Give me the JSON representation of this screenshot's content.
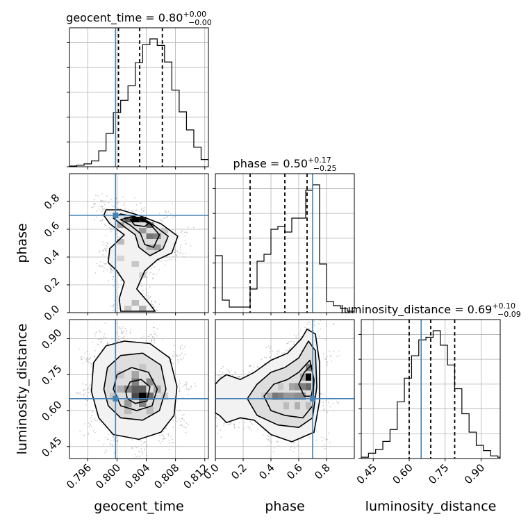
{
  "chart_data": {
    "type": "corner",
    "parameters": [
      "geocent_time",
      "phase",
      "luminosity_distance"
    ],
    "truth": {
      "geocent_time": 0.7998,
      "phase": 0.7,
      "luminosity_distance": 0.65
    },
    "titles": {
      "geocent_time": {
        "label": "geocent_time = 0.80",
        "plus": "+0.00",
        "minus": "−0.00"
      },
      "phase": {
        "label": "phase = 0.50",
        "plus": "+0.17",
        "minus": "−0.25"
      },
      "luminosity_distance": {
        "label": "luminosity_distance = 0.69",
        "plus": "+0.10",
        "minus": "−0.09"
      }
    },
    "axes": {
      "geocent_time": {
        "label": "geocent_time",
        "range": [
          0.7935,
          0.8125
        ],
        "ticks": [
          0.796,
          0.8,
          0.804,
          0.808,
          0.812
        ],
        "tick_labels": [
          "0.796",
          "0.800",
          "0.804",
          "0.808",
          "0.812"
        ]
      },
      "phase": {
        "label": "phase",
        "range": [
          0.0,
          1.0
        ],
        "ticks": [
          0.0,
          0.2,
          0.4,
          0.6,
          0.8
        ],
        "tick_labels": [
          "0.0",
          "0.2",
          "0.4",
          "0.6",
          "0.8"
        ]
      },
      "luminosity_distance": {
        "label": "luminosity_distance",
        "range": [
          0.4,
          0.98
        ],
        "ticks": [
          0.45,
          0.6,
          0.75,
          0.9
        ],
        "tick_labels": [
          "0.45",
          "0.60",
          "0.75",
          "0.90"
        ]
      }
    },
    "histograms": {
      "geocent_time": {
        "edges": [
          0.7935,
          0.7945,
          0.7955,
          0.7965,
          0.7975,
          0.7985,
          0.7995,
          0.8005,
          0.8015,
          0.8025,
          0.8035,
          0.8045,
          0.8055,
          0.8065,
          0.8075,
          0.8085,
          0.8095,
          0.8105,
          0.8115,
          0.8125
        ],
        "counts": [
          1,
          2,
          4,
          8,
          22,
          46,
          75,
          92,
          112,
          144,
          169,
          177,
          168,
          145,
          106,
          76,
          51,
          27,
          10
        ],
        "quantiles": [
          0.8002,
          0.8031,
          0.8062
        ]
      },
      "phase": {
        "edges": [
          0.0,
          0.05,
          0.1,
          0.15,
          0.2,
          0.25,
          0.3,
          0.35,
          0.4,
          0.45,
          0.5,
          0.55,
          0.6,
          0.65,
          0.7,
          0.75,
          0.8,
          0.85,
          0.9,
          0.95,
          1.0
        ],
        "counts": [
          0.41,
          0.09,
          0.04,
          0.04,
          0.04,
          0.17,
          0.37,
          0.42,
          0.6,
          0.62,
          0.58,
          0.68,
          0.68,
          0.88,
          0.92,
          0.35,
          0.08,
          0.05,
          0.03,
          0.01
        ],
        "quantiles": [
          0.25,
          0.5,
          0.66
        ]
      },
      "luminosity_distance": {
        "edges": [
          0.4,
          0.43,
          0.46,
          0.49,
          0.52,
          0.55,
          0.58,
          0.61,
          0.64,
          0.67,
          0.7,
          0.73,
          0.76,
          0.79,
          0.82,
          0.85,
          0.88,
          0.91,
          0.94,
          0.97,
          0.98
        ],
        "counts": [
          0.01,
          0.04,
          0.07,
          0.13,
          0.22,
          0.43,
          0.61,
          0.78,
          0.9,
          0.92,
          0.97,
          0.86,
          0.71,
          0.53,
          0.34,
          0.2,
          0.1,
          0.06,
          0.02,
          0.01
        ],
        "quantiles": [
          0.6,
          0.69,
          0.79
        ]
      }
    },
    "pairs": [
      {
        "x": "geocent_time",
        "y": "phase",
        "levels": [
          [
            [
              0.7982,
              0.7
            ],
            [
              0.7985,
              0.74
            ],
            [
              0.8005,
              0.74
            ],
            [
              0.803,
              0.7
            ],
            [
              0.806,
              0.64
            ],
            [
              0.8083,
              0.55
            ],
            [
              0.8075,
              0.43
            ],
            [
              0.8055,
              0.38
            ],
            [
              0.8038,
              0.3
            ],
            [
              0.8027,
              0.17
            ],
            [
              0.8045,
              0.06
            ],
            [
              0.8052,
              0.01
            ],
            [
              0.8005,
              0.01
            ],
            [
              0.8003,
              0.1
            ],
            [
              0.801,
              0.22
            ],
            [
              0.8,
              0.3
            ],
            [
              0.7988,
              0.36
            ],
            [
              0.799,
              0.46
            ],
            [
              0.801,
              0.56
            ],
            [
              0.799,
              0.64
            ]
          ],
          [
            [
              0.7995,
              0.68
            ],
            [
              0.8005,
              0.71
            ],
            [
              0.8025,
              0.69
            ],
            [
              0.805,
              0.63
            ],
            [
              0.807,
              0.55
            ],
            [
              0.8063,
              0.46
            ],
            [
              0.8045,
              0.41
            ],
            [
              0.803,
              0.47
            ],
            [
              0.8025,
              0.56
            ],
            [
              0.8012,
              0.61
            ]
          ],
          [
            [
              0.8005,
              0.67
            ],
            [
              0.8022,
              0.69
            ],
            [
              0.8045,
              0.64
            ],
            [
              0.8058,
              0.56
            ],
            [
              0.805,
              0.47
            ],
            [
              0.8038,
              0.49
            ],
            [
              0.8032,
              0.57
            ],
            [
              0.8018,
              0.63
            ]
          ],
          [
            [
              0.8018,
              0.67
            ],
            [
              0.8033,
              0.68
            ],
            [
              0.8045,
              0.65
            ],
            [
              0.8038,
              0.62
            ],
            [
              0.8024,
              0.63
            ]
          ]
        ],
        "cells": [
          {
            "x": 0.8025,
            "y": 0.67,
            "v": 1.0
          },
          {
            "x": 0.8035,
            "y": 0.67,
            "v": 0.85
          },
          {
            "x": 0.8015,
            "y": 0.67,
            "v": 0.6
          },
          {
            "x": 0.8045,
            "y": 0.63,
            "v": 0.55
          },
          {
            "x": 0.8045,
            "y": 0.55,
            "v": 0.5
          },
          {
            "x": 0.8055,
            "y": 0.55,
            "v": 0.45
          },
          {
            "x": 0.8055,
            "y": 0.47,
            "v": 0.35
          },
          {
            "x": 0.8005,
            "y": 0.63,
            "v": 0.3
          },
          {
            "x": 0.8035,
            "y": 0.59,
            "v": 0.35
          },
          {
            "x": 0.8045,
            "y": 0.47,
            "v": 0.25
          },
          {
            "x": 0.8005,
            "y": 0.51,
            "v": 0.2
          },
          {
            "x": 0.8025,
            "y": 0.35,
            "v": 0.15
          },
          {
            "x": 0.8035,
            "y": 0.27,
            "v": 0.1
          },
          {
            "x": 0.8025,
            "y": 0.07,
            "v": 0.2
          },
          {
            "x": 0.8035,
            "y": 0.03,
            "v": 0.25
          },
          {
            "x": 0.8015,
            "y": 0.03,
            "v": 0.15
          },
          {
            "x": 0.8005,
            "y": 0.39,
            "v": 0.1
          },
          {
            "x": 0.8065,
            "y": 0.59,
            "v": 0.15
          }
        ]
      },
      {
        "x": "geocent_time",
        "y": "luminosity_distance",
        "levels": [
          [
            [
              0.7965,
              0.68
            ],
            [
              0.7968,
              0.8
            ],
            [
              0.7985,
              0.87
            ],
            [
              0.801,
              0.89
            ],
            [
              0.8045,
              0.88
            ],
            [
              0.8072,
              0.82
            ],
            [
              0.8082,
              0.7
            ],
            [
              0.8078,
              0.58
            ],
            [
              0.806,
              0.51
            ],
            [
              0.803,
              0.48
            ],
            [
              0.7995,
              0.5
            ],
            [
              0.7975,
              0.57
            ]
          ],
          [
            [
              0.7982,
              0.69
            ],
            [
              0.7987,
              0.78
            ],
            [
              0.8005,
              0.83
            ],
            [
              0.8035,
              0.84
            ],
            [
              0.806,
              0.79
            ],
            [
              0.8067,
              0.69
            ],
            [
              0.8058,
              0.6
            ],
            [
              0.8035,
              0.56
            ],
            [
              0.8005,
              0.57
            ],
            [
              0.7988,
              0.62
            ]
          ],
          [
            [
              0.7995,
              0.69
            ],
            [
              0.8,
              0.75
            ],
            [
              0.802,
              0.78
            ],
            [
              0.8043,
              0.76
            ],
            [
              0.8055,
              0.69
            ],
            [
              0.8048,
              0.62
            ],
            [
              0.8027,
              0.6
            ],
            [
              0.8005,
              0.62
            ]
          ],
          [
            [
              0.8012,
              0.68
            ],
            [
              0.8018,
              0.72
            ],
            [
              0.8033,
              0.73
            ],
            [
              0.8045,
              0.7
            ],
            [
              0.8041,
              0.64
            ],
            [
              0.8025,
              0.63
            ],
            [
              0.8014,
              0.65
            ]
          ]
        ],
        "cells": [
          {
            "x": 0.8035,
            "y": 0.66,
            "v": 1.0
          },
          {
            "x": 0.8025,
            "y": 0.66,
            "v": 0.7
          },
          {
            "x": 0.8045,
            "y": 0.66,
            "v": 0.55
          },
          {
            "x": 0.8025,
            "y": 0.69,
            "v": 0.6
          },
          {
            "x": 0.8035,
            "y": 0.69,
            "v": 0.6
          },
          {
            "x": 0.8015,
            "y": 0.69,
            "v": 0.45
          },
          {
            "x": 0.8045,
            "y": 0.72,
            "v": 0.4
          },
          {
            "x": 0.8025,
            "y": 0.72,
            "v": 0.45
          },
          {
            "x": 0.8015,
            "y": 0.63,
            "v": 0.35
          },
          {
            "x": 0.8035,
            "y": 0.63,
            "v": 0.45
          },
          {
            "x": 0.8005,
            "y": 0.69,
            "v": 0.25
          },
          {
            "x": 0.8055,
            "y": 0.69,
            "v": 0.3
          },
          {
            "x": 0.8025,
            "y": 0.75,
            "v": 0.3
          },
          {
            "x": 0.8005,
            "y": 0.75,
            "v": 0.15
          },
          {
            "x": 0.8045,
            "y": 0.6,
            "v": 0.2
          },
          {
            "x": 0.8015,
            "y": 0.6,
            "v": 0.2
          },
          {
            "x": 0.8035,
            "y": 0.78,
            "v": 0.15
          },
          {
            "x": 0.7995,
            "y": 0.66,
            "v": 0.15
          },
          {
            "x": 0.8065,
            "y": 0.66,
            "v": 0.12
          }
        ]
      },
      {
        "x": "phase",
        "y": "luminosity_distance",
        "levels": [
          [
            [
              0.0,
              0.71
            ],
            [
              0.03,
              0.73
            ],
            [
              0.08,
              0.75
            ],
            [
              0.18,
              0.73
            ],
            [
              0.28,
              0.76
            ],
            [
              0.4,
              0.81
            ],
            [
              0.52,
              0.84
            ],
            [
              0.62,
              0.9
            ],
            [
              0.66,
              0.94
            ],
            [
              0.72,
              0.92
            ],
            [
              0.75,
              0.8
            ],
            [
              0.75,
              0.64
            ],
            [
              0.71,
              0.51
            ],
            [
              0.55,
              0.47
            ],
            [
              0.4,
              0.5
            ],
            [
              0.28,
              0.56
            ],
            [
              0.18,
              0.57
            ],
            [
              0.08,
              0.55
            ],
            [
              0.03,
              0.58
            ],
            [
              0.0,
              0.59
            ]
          ],
          [
            [
              0.23,
              0.65
            ],
            [
              0.3,
              0.71
            ],
            [
              0.4,
              0.76
            ],
            [
              0.5,
              0.78
            ],
            [
              0.6,
              0.82
            ],
            [
              0.67,
              0.89
            ],
            [
              0.72,
              0.85
            ],
            [
              0.73,
              0.7
            ],
            [
              0.7,
              0.57
            ],
            [
              0.6,
              0.53
            ],
            [
              0.45,
              0.54
            ],
            [
              0.3,
              0.58
            ]
          ],
          [
            [
              0.35,
              0.66
            ],
            [
              0.42,
              0.71
            ],
            [
              0.52,
              0.73
            ],
            [
              0.6,
              0.76
            ],
            [
              0.68,
              0.81
            ],
            [
              0.71,
              0.73
            ],
            [
              0.7,
              0.62
            ],
            [
              0.63,
              0.57
            ],
            [
              0.5,
              0.58
            ],
            [
              0.4,
              0.6
            ]
          ],
          [
            [
              0.6,
              0.71
            ],
            [
              0.64,
              0.76
            ],
            [
              0.69,
              0.79
            ],
            [
              0.71,
              0.72
            ],
            [
              0.69,
              0.66
            ],
            [
              0.64,
              0.66
            ]
          ]
        ],
        "cells": [
          {
            "x": 0.67,
            "y": 0.74,
            "v": 1.0
          },
          {
            "x": 0.67,
            "y": 0.7,
            "v": 0.55
          },
          {
            "x": 0.63,
            "y": 0.7,
            "v": 0.45
          },
          {
            "x": 0.67,
            "y": 0.78,
            "v": 0.45
          },
          {
            "x": 0.43,
            "y": 0.66,
            "v": 0.5
          },
          {
            "x": 0.47,
            "y": 0.66,
            "v": 0.45
          },
          {
            "x": 0.51,
            "y": 0.66,
            "v": 0.35
          },
          {
            "x": 0.55,
            "y": 0.66,
            "v": 0.35
          },
          {
            "x": 0.59,
            "y": 0.66,
            "v": 0.4
          },
          {
            "x": 0.63,
            "y": 0.66,
            "v": 0.4
          },
          {
            "x": 0.55,
            "y": 0.7,
            "v": 0.3
          },
          {
            "x": 0.59,
            "y": 0.7,
            "v": 0.35
          },
          {
            "x": 0.39,
            "y": 0.66,
            "v": 0.25
          },
          {
            "x": 0.51,
            "y": 0.62,
            "v": 0.2
          },
          {
            "x": 0.59,
            "y": 0.62,
            "v": 0.25
          },
          {
            "x": 0.63,
            "y": 0.74,
            "v": 0.3
          },
          {
            "x": 0.35,
            "y": 0.66,
            "v": 0.12
          },
          {
            "x": 0.47,
            "y": 0.7,
            "v": 0.15
          },
          {
            "x": 0.67,
            "y": 0.62,
            "v": 0.2
          }
        ]
      }
    ],
    "colors": {
      "truth": "#4682b4",
      "hist_line": "#000000",
      "contour": "#000000",
      "grid": "#b0b0b0",
      "scatter": "#9a9a9a"
    },
    "grid": true
  }
}
